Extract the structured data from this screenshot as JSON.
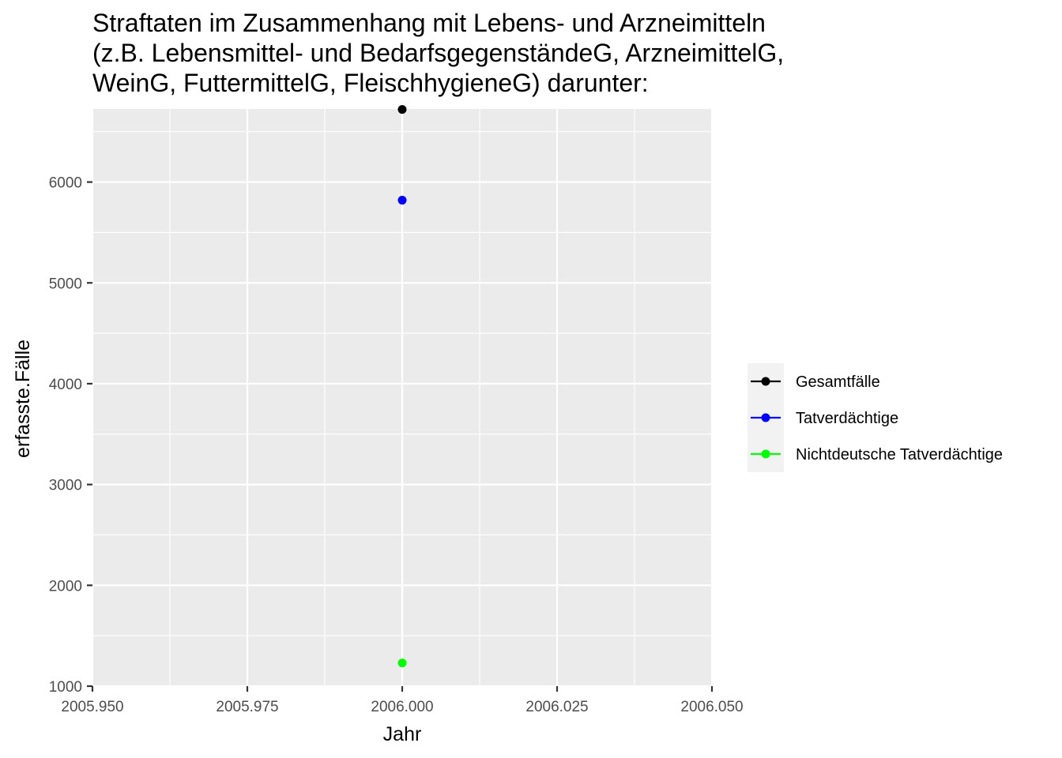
{
  "chart_data": {
    "type": "scatter",
    "title_lines": [
      "Straftaten im Zusammenhang mit Lebens- und Arzneimitteln",
      "(z.B. Lebensmittel- und BedarfsgegenständeG, ArzneimittelG,",
      "WeinG, FuttermittelG, FleischhygieneG) darunter:"
    ],
    "xlabel": "Jahr",
    "ylabel": "erfasste.Fälle",
    "xlim": [
      2005.95,
      2006.05
    ],
    "ylim": [
      1000,
      6725
    ],
    "x_ticks": [
      2005.95,
      2005.975,
      2006.0,
      2006.025,
      2006.05
    ],
    "x_tick_labels": [
      "2005.950",
      "2005.975",
      "2006.000",
      "2006.025",
      "2006.050"
    ],
    "y_ticks": [
      1000,
      2000,
      3000,
      4000,
      5000,
      6000
    ],
    "y_tick_labels": [
      "1000",
      "2000",
      "3000",
      "4000",
      "5000",
      "6000"
    ],
    "grid": true,
    "background": "#ebebeb",
    "legend_position": "right",
    "series": [
      {
        "name": "Gesamtfälle",
        "color": "#000000",
        "x": [
          2006.0
        ],
        "y": [
          6720
        ]
      },
      {
        "name": "Tatverdächtige",
        "color": "#0000ff",
        "x": [
          2006.0
        ],
        "y": [
          5820
        ]
      },
      {
        "name": "Nichtdeutsche Tatverdächtige",
        "color": "#00ff00",
        "x": [
          2006.0
        ],
        "y": [
          1230
        ]
      }
    ]
  }
}
